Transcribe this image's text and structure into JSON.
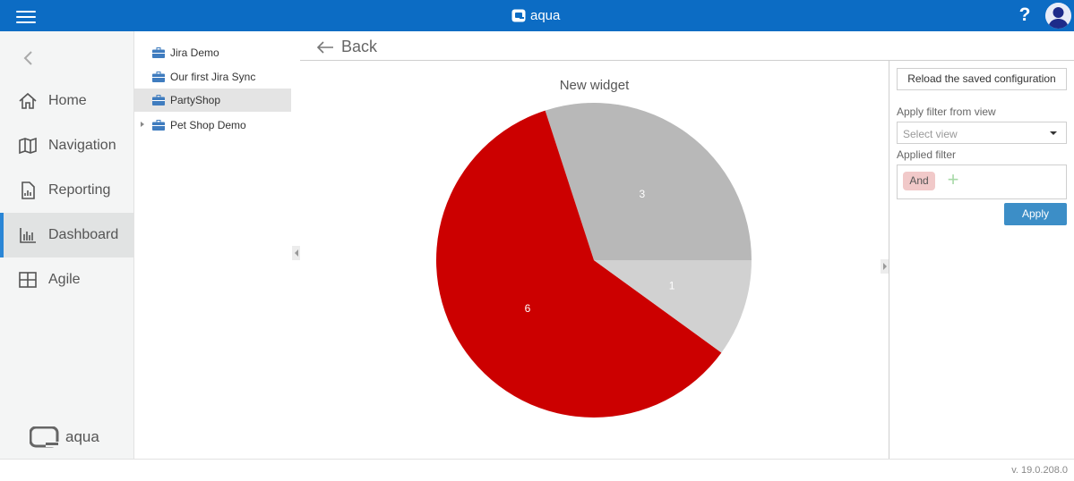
{
  "app": {
    "title": "aqua"
  },
  "topbar": {
    "help_label": "?"
  },
  "sidenav": {
    "items": [
      {
        "label": "Home",
        "icon": "home-icon"
      },
      {
        "label": "Navigation",
        "icon": "map-icon"
      },
      {
        "label": "Reporting",
        "icon": "report-icon"
      },
      {
        "label": "Dashboard",
        "icon": "bar-chart-icon",
        "active": true
      },
      {
        "label": "Agile",
        "icon": "grid-icon"
      }
    ],
    "logo_text": "aqua"
  },
  "tree": {
    "items": [
      {
        "label": "Jira Demo",
        "icon": "briefcase-icon"
      },
      {
        "label": "Our first Jira Sync",
        "icon": "briefcase-icon"
      },
      {
        "label": "PartyShop",
        "icon": "briefcase-icon",
        "selected": true
      },
      {
        "label": "Pet Shop Demo",
        "icon": "briefcase-icon",
        "expandable": true
      }
    ]
  },
  "main": {
    "back_label": "Back"
  },
  "widget": {
    "title": "New widget"
  },
  "chart_data": {
    "type": "pie",
    "title": "New widget",
    "values": [
      3,
      6,
      1
    ],
    "labels": [
      "3",
      "6",
      "1"
    ],
    "colors": [
      "#b8b8b8",
      "#cc0000",
      "#d1d1d1"
    ]
  },
  "right_panel": {
    "reload_label": "Reload the saved configuration",
    "filter_view_label": "Apply filter from view",
    "select_placeholder": "Select view",
    "applied_filter_label": "Applied filter",
    "and_chip": "And",
    "add_symbol": "+",
    "apply_label": "Apply"
  },
  "footer": {
    "version": "v. 19.0.208.0"
  },
  "colors": {
    "topbar": "#0c6cc4",
    "accent": "#2a86d6",
    "apply": "#3c8ec7"
  }
}
